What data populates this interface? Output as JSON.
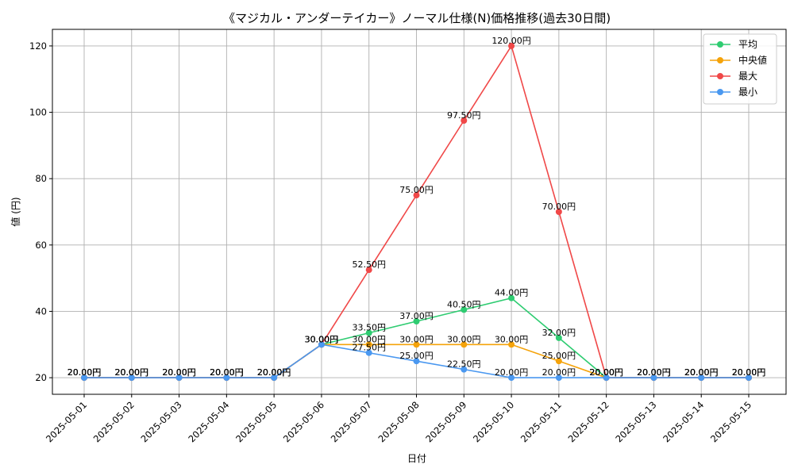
{
  "chart_data": {
    "type": "line",
    "title": "《マジカル・アンダーテイカー》ノーマル仕様(N)価格推移(過去30日間)",
    "xlabel": "日付",
    "ylabel": "値 (円)",
    "categories": [
      "2025-05-01",
      "2025-05-02",
      "2025-05-03",
      "2025-05-04",
      "2025-05-05",
      "2025-05-06",
      "2025-05-07",
      "2025-05-08",
      "2025-05-09",
      "2025-05-10",
      "2025-05-11",
      "2025-05-12",
      "2025-05-13",
      "2025-05-14",
      "2025-05-15"
    ],
    "ylim": [
      15,
      125
    ],
    "yticks": [
      20,
      40,
      60,
      80,
      100,
      120
    ],
    "grid": true,
    "legend_position": "top-right",
    "value_suffix": "円",
    "series": [
      {
        "name": "平均",
        "color": "#2ecc71",
        "values": [
          20,
          20,
          20,
          20,
          20,
          30,
          33.5,
          37,
          40.5,
          44,
          32,
          20,
          20,
          20,
          20
        ]
      },
      {
        "name": "中央値",
        "color": "#f5a30a",
        "values": [
          20,
          20,
          20,
          20,
          20,
          30,
          30,
          30,
          30,
          30,
          25,
          20,
          20,
          20,
          20
        ]
      },
      {
        "name": "最大",
        "color": "#f04848",
        "values": [
          20,
          20,
          20,
          20,
          20,
          30,
          52.5,
          75,
          97.5,
          120,
          70,
          20,
          20,
          20,
          20
        ]
      },
      {
        "name": "最小",
        "color": "#4a98f0",
        "values": [
          20,
          20,
          20,
          20,
          20,
          30,
          27.5,
          25,
          22.5,
          20,
          20,
          20,
          20,
          20,
          20
        ]
      }
    ]
  }
}
